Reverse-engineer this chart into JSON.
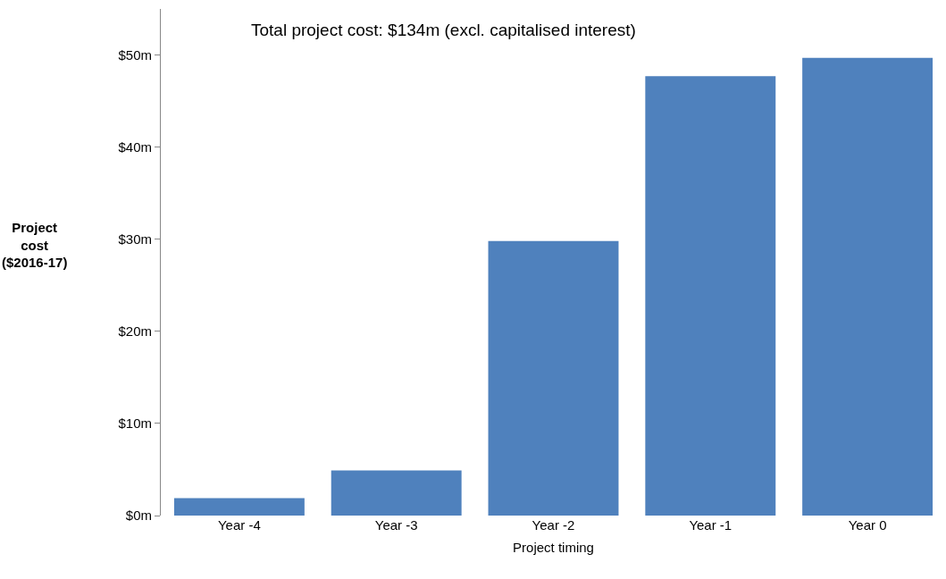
{
  "chart_data": {
    "type": "bar",
    "xlabel": "Project timing",
    "ylabel": "Project cost ($2016-17)",
    "annotations": [
      "Total project cost: $134m (excl. capitalised interest)"
    ],
    "categories": [
      "Year -4",
      "Year -3",
      "Year -2",
      "Year -1",
      "Year 0"
    ],
    "values": [
      1.9,
      4.9,
      29.8,
      47.7,
      49.7
    ],
    "color": "#4f81bd",
    "ylim": [
      0,
      55
    ],
    "yticks": [
      {
        "value": 0,
        "label": "$0m"
      },
      {
        "value": 10,
        "label": "$10m"
      },
      {
        "value": 20,
        "label": "$20m"
      },
      {
        "value": 30,
        "label": "$30m"
      },
      {
        "value": 40,
        "label": "$40m"
      },
      {
        "value": 50,
        "label": "$50m"
      }
    ],
    "grid": false,
    "legend": false
  }
}
